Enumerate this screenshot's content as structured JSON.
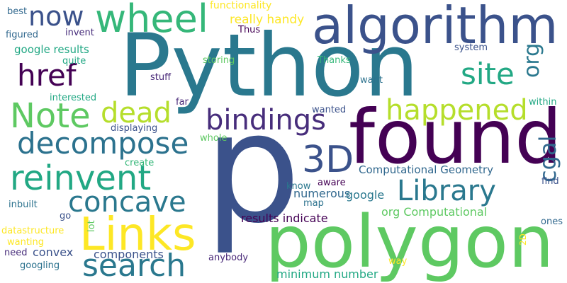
{
  "words": [
    {
      "text": "Python",
      "color": "#2a788e"
    },
    {
      "text": "p",
      "color": "#3b528b"
    },
    {
      "text": "found",
      "color": "#440154"
    },
    {
      "text": "polygon",
      "color": "#5ec962"
    },
    {
      "text": "algorithm",
      "color": "#3b528b"
    },
    {
      "text": "Links",
      "color": "#fde725"
    },
    {
      "text": "wheel",
      "color": "#35b779"
    },
    {
      "text": "now",
      "color": "#3b528b"
    },
    {
      "text": "href",
      "color": "#440154"
    },
    {
      "text": "Note",
      "color": "#5ec962"
    },
    {
      "text": "dead",
      "color": "#b5de2b"
    },
    {
      "text": "decompose",
      "color": "#2c728e"
    },
    {
      "text": "reinvent",
      "color": "#22a884"
    },
    {
      "text": "concave",
      "color": "#2a788e"
    },
    {
      "text": "search",
      "color": "#2a788e"
    },
    {
      "text": "bindings",
      "color": "#472d7b"
    },
    {
      "text": "3D",
      "color": "#3b528b"
    },
    {
      "text": "site",
      "color": "#22a884"
    },
    {
      "text": "happened",
      "color": "#b5de2b"
    },
    {
      "text": "org",
      "color": "#2a788e"
    },
    {
      "text": "cgal",
      "color": "#31688e"
    },
    {
      "text": "Library",
      "color": "#2a788e"
    },
    {
      "text": "Computational Geometry",
      "color": "#31688e"
    },
    {
      "text": "google results",
      "color": "#22a884"
    },
    {
      "text": "really handy",
      "color": "#fde725"
    },
    {
      "text": "functionality",
      "color": "#fde725"
    },
    {
      "text": "results indicate",
      "color": "#440154"
    },
    {
      "text": "org Computational",
      "color": "#5ec962"
    },
    {
      "text": "numerous",
      "color": "#31688e"
    },
    {
      "text": "google",
      "color": "#2a788e"
    },
    {
      "text": "components",
      "color": "#3b528b"
    },
    {
      "text": "convex",
      "color": "#3b528b"
    },
    {
      "text": "minimum number",
      "color": "#22a884"
    },
    {
      "text": "best",
      "color": "#31688e"
    },
    {
      "text": "figured",
      "color": "#31688e"
    },
    {
      "text": "invent",
      "color": "#472d7b"
    },
    {
      "text": "quite",
      "color": "#22a884"
    },
    {
      "text": "interested",
      "color": "#22a884"
    },
    {
      "text": "stuff",
      "color": "#482878"
    },
    {
      "text": "displaying",
      "color": "#3b528b"
    },
    {
      "text": "whole",
      "color": "#5ec962"
    },
    {
      "text": "create",
      "color": "#35b779"
    },
    {
      "text": "inbuilt",
      "color": "#2c728e"
    },
    {
      "text": "go",
      "color": "#3b528b"
    },
    {
      "text": "datastructure",
      "color": "#fde725"
    },
    {
      "text": "wanting",
      "color": "#fde725"
    },
    {
      "text": "need",
      "color": "#472d7b"
    },
    {
      "text": "googling",
      "color": "#2c728e"
    },
    {
      "text": "lot",
      "color": "#5ec962"
    },
    {
      "text": "anybody",
      "color": "#482878"
    },
    {
      "text": "storing",
      "color": "#5ec962"
    },
    {
      "text": "Thus",
      "color": "#440154"
    },
    {
      "text": "Thanks",
      "color": "#35b779"
    },
    {
      "text": "system",
      "color": "#3b528b"
    },
    {
      "text": "want",
      "color": "#2c728e"
    },
    {
      "text": "far",
      "color": "#482878"
    },
    {
      "text": "wanted",
      "color": "#3b528b"
    },
    {
      "text": "know",
      "color": "#2a788e"
    },
    {
      "text": "aware",
      "color": "#440154"
    },
    {
      "text": "map",
      "color": "#2c728e"
    },
    {
      "text": "way",
      "color": "#fde725"
    },
    {
      "text": "within",
      "color": "#22a884"
    },
    {
      "text": "find",
      "color": "#3b528b"
    },
    {
      "text": "ones",
      "color": "#31688e"
    },
    {
      "text": "2D",
      "color": "#fde725"
    }
  ]
}
